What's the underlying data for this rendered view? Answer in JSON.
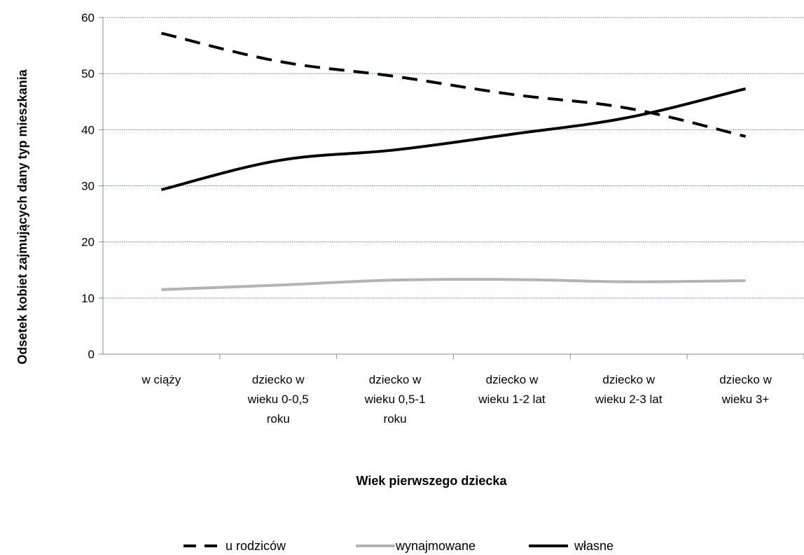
{
  "chart_data": {
    "type": "line",
    "title": "",
    "xlabel": "Wiek pierwszego dziecka",
    "ylabel": "Odsetek kobiet zajmujących dany typ mieszkania",
    "ylim": [
      0,
      60
    ],
    "yticks": [
      0,
      10,
      20,
      30,
      40,
      50,
      60
    ],
    "grid": true,
    "legend_position": "bottom",
    "categories": [
      [
        "w ciąży"
      ],
      [
        "dziecko w",
        "wieku 0-0,5",
        "roku"
      ],
      [
        "dziecko w",
        "wieku 0,5-1",
        "roku"
      ],
      [
        "dziecko w",
        "wieku 1-2 lat"
      ],
      [
        "dziecko w",
        "wieku 2-3 lat"
      ],
      [
        "dziecko w",
        "wieku 3+"
      ]
    ],
    "series": [
      {
        "name": "u rodziców",
        "values": [
          57.2,
          52.2,
          49.5,
          46.3,
          43.8,
          38.8
        ],
        "color": "#000000",
        "style": "dashed"
      },
      {
        "name": "wynajmowane",
        "values": [
          11.5,
          12.3,
          13.2,
          13.3,
          12.9,
          13.1
        ],
        "color": "#b3b3b3",
        "style": "solid"
      },
      {
        "name": "własne",
        "values": [
          29.3,
          34.5,
          36.4,
          39.2,
          42.2,
          47.3
        ],
        "color": "#000000",
        "style": "solid"
      }
    ]
  }
}
